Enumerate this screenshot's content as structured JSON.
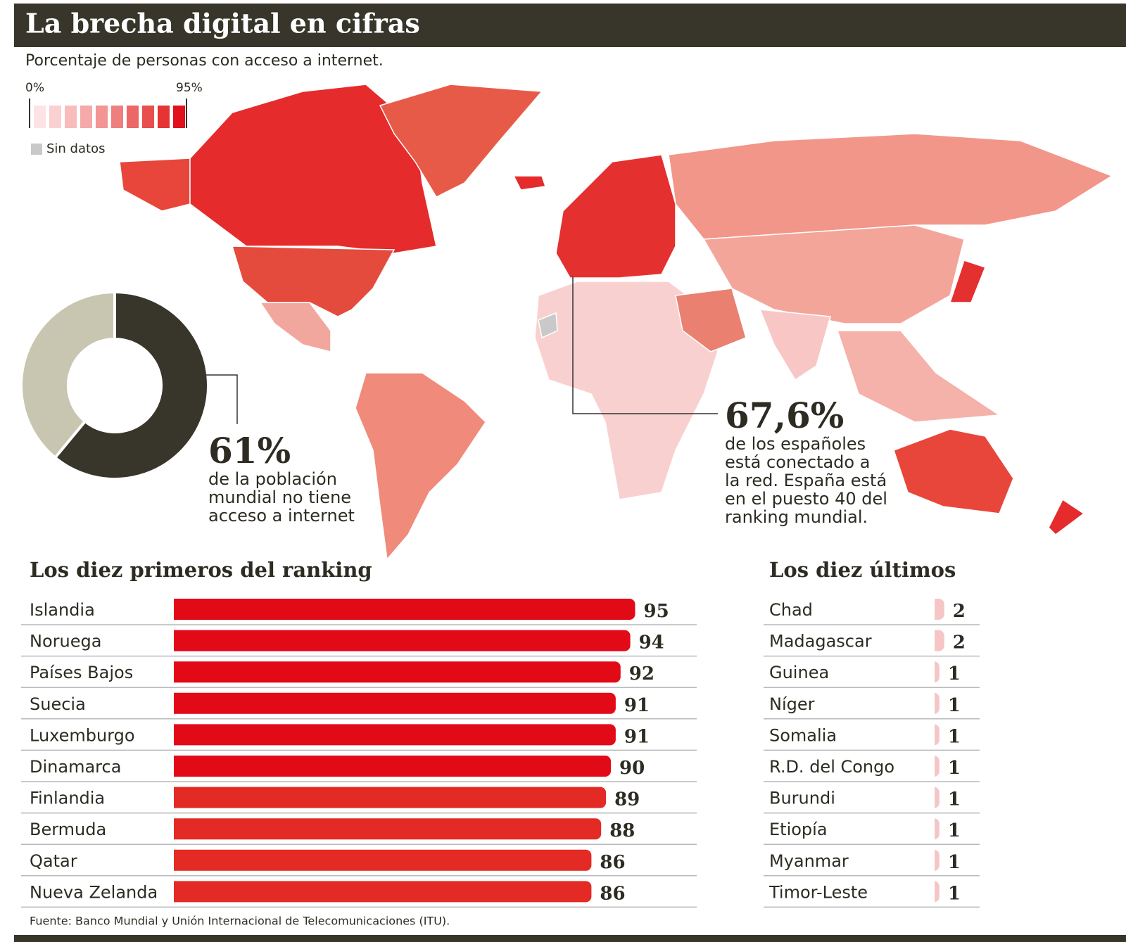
{
  "title": "La brecha digital en cifras",
  "subtitle": "Porcentaje de personas con acceso a internet.",
  "map_legend": {
    "min_label": "0%",
    "max_label": "95%",
    "no_data": "Sin datos"
  },
  "world_callout": {
    "text": [
      "de la población",
      "mundial no tiene",
      "acceso a internet"
    ]
  },
  "spain_callout": {
    "headline": "67,6%",
    "text": [
      "de los españoles",
      "está conectado a",
      "la red. España está",
      "en el puesto 40 del",
      "ranking mundial."
    ]
  },
  "chart_data": [
    {
      "type": "donut",
      "values": [
        61,
        39
      ],
      "value_labels": [
        "61%",
        null
      ],
      "colors": [
        "#38362a",
        "#c8c5b0"
      ]
    },
    {
      "type": "bar",
      "title": "Los diez primeros del ranking",
      "categories": [
        "Islandia",
        "Noruega",
        "Países Bajos",
        "Suecia",
        "Luxemburgo",
        "Dinamarca",
        "Finlandia",
        "Bermuda",
        "Qatar",
        "Nueva Zelanda"
      ],
      "values": [
        95,
        94,
        92,
        91,
        91,
        90,
        89,
        88,
        86,
        86
      ],
      "colors": [
        "#e30a17",
        "#e30a17",
        "#e30a17",
        "#e30a17",
        "#e30a17",
        "#e30a17",
        "#e42a24",
        "#e42a24",
        "#e42a24",
        "#e42a24"
      ],
      "xlim": [
        0,
        100
      ]
    },
    {
      "type": "bar",
      "title": "Los diez últimos",
      "categories": [
        "Chad",
        "Madagascar",
        "Guinea",
        "Níger",
        "Somalia",
        "R.D. del Congo",
        "Burundi",
        "Etiopía",
        "Myanmar",
        "Timor-Leste"
      ],
      "values": [
        2,
        2,
        1,
        1,
        1,
        1,
        1,
        1,
        1,
        1
      ],
      "color": "#f6c6c6",
      "xlim": [
        0,
        100
      ]
    }
  ],
  "source": "Fuente: Banco Mundial y Unión Internacional de Telecomunicaciones (ITU)."
}
